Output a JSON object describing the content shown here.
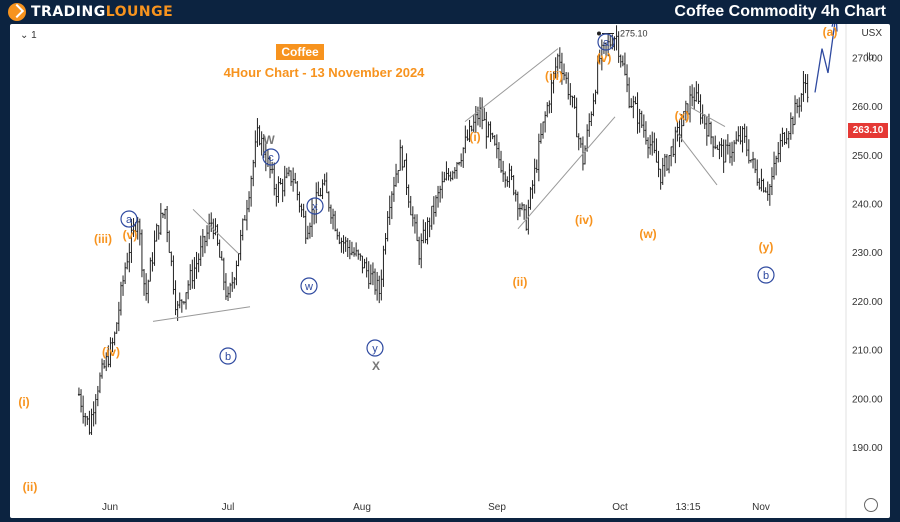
{
  "header": {
    "logo_part1": "TradingLounge",
    "page_title": "Coffee Commodity 4h Chart"
  },
  "chart": {
    "interval_label": "1",
    "symbol_label": "Coffee",
    "subtitle": "4Hour Chart - 13 November  2024",
    "currency": "USX",
    "unit": "lb",
    "current_price_label": "263.10",
    "peak_label": "275.10",
    "y_ticks": [
      "270.00",
      "260.00",
      "250.00",
      "240.00",
      "230.00",
      "220.00",
      "210.00",
      "200.00",
      "190.00"
    ],
    "x_ticks": [
      "Jun",
      "Jul",
      "Aug",
      "Sep",
      "Oct",
      "13:15",
      "Nov"
    ],
    "wave_labels": [
      {
        "text": "(i)",
        "color": "orange",
        "circle": false
      },
      {
        "text": "(ii)",
        "color": "orange",
        "circle": false
      },
      {
        "text": "(iii)",
        "color": "orange",
        "circle": false
      },
      {
        "text": "(iv)",
        "color": "orange",
        "circle": false
      },
      {
        "text": "(v)",
        "color": "orange",
        "circle": false
      },
      {
        "text": "a",
        "color": "navy",
        "circle": true
      },
      {
        "text": "b",
        "color": "navy",
        "circle": true
      },
      {
        "text": "W",
        "color": "gray",
        "circle": false
      },
      {
        "text": "c",
        "color": "navy",
        "circle": true
      },
      {
        "text": "x",
        "color": "navy",
        "circle": true
      },
      {
        "text": "w",
        "color": "navy",
        "circle": true
      },
      {
        "text": "y",
        "color": "navy",
        "circle": true
      },
      {
        "text": "X",
        "color": "gray",
        "circle": false
      },
      {
        "text": "(i)",
        "color": "orange",
        "circle": false
      },
      {
        "text": "(ii)",
        "color": "orange",
        "circle": false
      },
      {
        "text": "(iii)",
        "color": "orange",
        "circle": false
      },
      {
        "text": "(iv)",
        "color": "orange",
        "circle": false
      },
      {
        "text": "(v)",
        "color": "orange",
        "circle": false
      },
      {
        "text": "a",
        "color": "navy",
        "circle": true
      },
      {
        "text": "(w)",
        "color": "orange",
        "circle": false
      },
      {
        "text": "(x)",
        "color": "orange",
        "circle": false
      },
      {
        "text": "(y)",
        "color": "orange",
        "circle": false
      },
      {
        "text": "b",
        "color": "navy",
        "circle": true
      },
      {
        "text": "(a)",
        "color": "orange",
        "circle": false
      }
    ]
  },
  "chart_data": {
    "type": "candlestick",
    "title": "Coffee",
    "subtitle": "4Hour Chart - 13 November  2024",
    "ylim": [
      187,
      282
    ],
    "x_labels": [
      "Jun",
      "Jul",
      "Aug",
      "Sep",
      "Oct",
      "13:15",
      "Nov"
    ],
    "last_price": 263.1,
    "marked_high": 275.1,
    "price_path": [
      {
        "x": "May 23",
        "y": 201
      },
      {
        "x": "May 26",
        "y": 194
      },
      {
        "x": "May 28",
        "y": 202
      },
      {
        "x": "Jun 2",
        "y": 212
      },
      {
        "x": "Jun 5",
        "y": 228
      },
      {
        "x": "Jun 8",
        "y": 238
      },
      {
        "x": "Jun 10",
        "y": 221
      },
      {
        "x": "Jun 13",
        "y": 235
      },
      {
        "x": "Jun 15",
        "y": 239
      },
      {
        "x": "Jun 18",
        "y": 218
      },
      {
        "x": "Jun 24",
        "y": 230
      },
      {
        "x": "Jun 27",
        "y": 237
      },
      {
        "x": "Jul 1",
        "y": 220
      },
      {
        "x": "Jul 4",
        "y": 233
      },
      {
        "x": "Jul 8",
        "y": 255
      },
      {
        "x": "Jul 12",
        "y": 243
      },
      {
        "x": "Jul 16",
        "y": 246
      },
      {
        "x": "Jul 19",
        "y": 235
      },
      {
        "x": "Jul 23",
        "y": 244
      },
      {
        "x": "Jul 27",
        "y": 233
      },
      {
        "x": "Aug 1",
        "y": 228
      },
      {
        "x": "Aug 5",
        "y": 222
      },
      {
        "x": "Aug 7",
        "y": 240
      },
      {
        "x": "Aug 10",
        "y": 251
      },
      {
        "x": "Aug 14",
        "y": 230
      },
      {
        "x": "Aug 19",
        "y": 243
      },
      {
        "x": "Aug 24",
        "y": 251
      },
      {
        "x": "Aug 28",
        "y": 259
      },
      {
        "x": "Sep 1",
        "y": 250
      },
      {
        "x": "Sep 5",
        "y": 244
      },
      {
        "x": "Sep 8",
        "y": 236
      },
      {
        "x": "Sep 12",
        "y": 255
      },
      {
        "x": "Sep 16",
        "y": 271
      },
      {
        "x": "Sep 19",
        "y": 262
      },
      {
        "x": "Sep 22",
        "y": 249
      },
      {
        "x": "Sep 26",
        "y": 270
      },
      {
        "x": "Sep 30",
        "y": 275.1
      },
      {
        "x": "Oct 3",
        "y": 262
      },
      {
        "x": "Oct 7",
        "y": 254
      },
      {
        "x": "Oct 10",
        "y": 246
      },
      {
        "x": "Oct 14",
        "y": 255
      },
      {
        "x": "Oct 17",
        "y": 263
      },
      {
        "x": "Oct 21",
        "y": 254
      },
      {
        "x": "Oct 24",
        "y": 250
      },
      {
        "x": "Oct 28",
        "y": 254
      },
      {
        "x": "Oct 31",
        "y": 246
      },
      {
        "x": "Nov 3",
        "y": 243
      },
      {
        "x": "Nov 6",
        "y": 253
      },
      {
        "x": "Nov 9",
        "y": 258
      },
      {
        "x": "Nov 12",
        "y": 265
      },
      {
        "x": "Nov 13",
        "y": 263.1
      }
    ],
    "grid": false,
    "legend": "none"
  }
}
